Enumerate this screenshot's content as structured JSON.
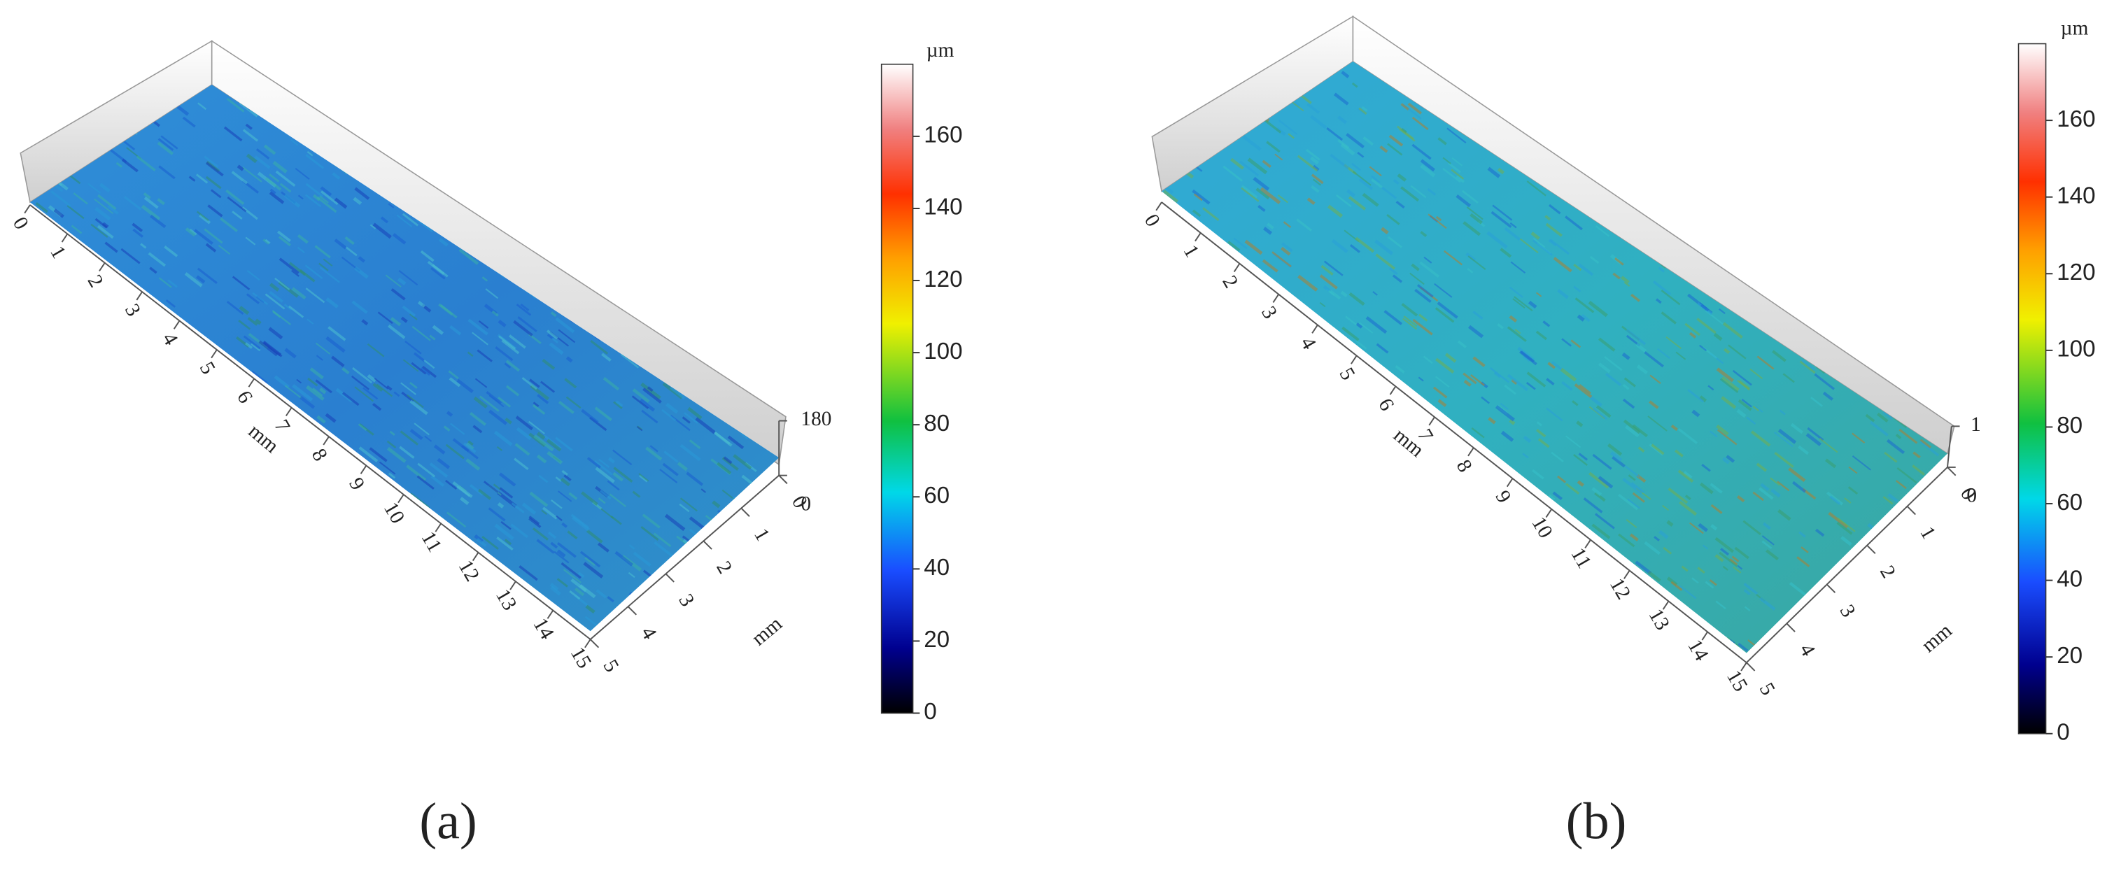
{
  "panels": [
    {
      "label": "(a)",
      "x_axis": {
        "label": "mm",
        "ticks": [
          0,
          1,
          2,
          3,
          4,
          5,
          6,
          7,
          8,
          9,
          10,
          11,
          12,
          13,
          14,
          15
        ]
      },
      "y_axis": {
        "label": "mm",
        "ticks": [
          0,
          1,
          2,
          3,
          4,
          5
        ]
      },
      "z_axis": {
        "ticks": [
          0,
          180
        ]
      },
      "colorbar": {
        "unit": "µm",
        "limits": [
          0,
          180
        ],
        "ticks": [
          0,
          20,
          40,
          60,
          80,
          100,
          120,
          140,
          160
        ]
      }
    },
    {
      "label": "(b)",
      "x_axis": {
        "label": "mm",
        "ticks": [
          0,
          1,
          2,
          3,
          4,
          5,
          6,
          7,
          8,
          9,
          10,
          11,
          12,
          13,
          14,
          15
        ]
      },
      "y_axis": {
        "label": "mm",
        "ticks": [
          0,
          1,
          2,
          3,
          4,
          5
        ]
      },
      "z_axis": {
        "ticks": [
          0,
          1
        ]
      },
      "colorbar": {
        "unit": "µm",
        "limits": [
          0,
          180
        ],
        "ticks": [
          0,
          20,
          40,
          60,
          80,
          100,
          120,
          140,
          160
        ]
      }
    }
  ]
}
